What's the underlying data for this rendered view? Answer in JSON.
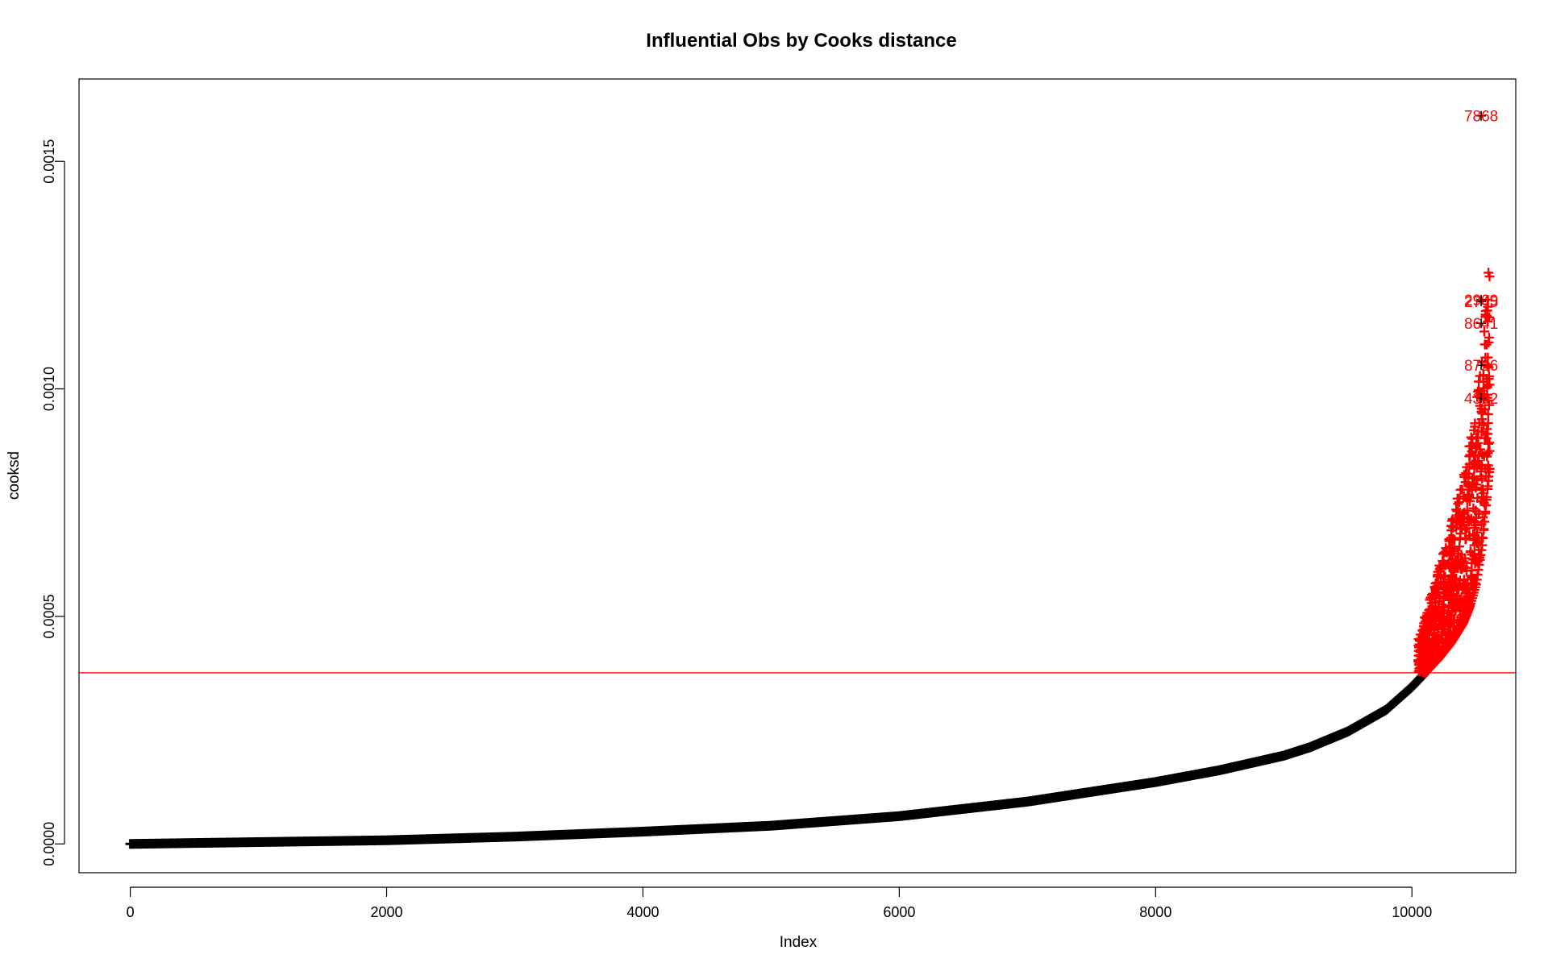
{
  "chart_data": {
    "type": "scatter",
    "title": "Influential Obs by Cooks distance",
    "xlabel": "Index",
    "ylabel": "cooksd",
    "xlim": [
      -400,
      10810
    ],
    "ylim": [
      -6.33e-05,
      0.001681
    ],
    "x_ticks": [
      0,
      2000,
      4000,
      6000,
      8000,
      10000
    ],
    "x_tick_labels": [
      "0",
      "2000",
      "4000",
      "6000",
      "8000",
      "10000"
    ],
    "y_ticks": [
      0,
      0.0005,
      0.001,
      0.0015
    ],
    "y_tick_labels": [
      "0.0000",
      "0.0005",
      "0.0010",
      "0.0015"
    ],
    "grid": false,
    "legend": "none",
    "n_obs": 10600,
    "curve_x": [
      0,
      1000,
      2000,
      3000,
      4000,
      5000,
      6000,
      7000,
      8000,
      8500,
      9000,
      9200,
      9500,
      9800,
      10000,
      10100,
      10200,
      10300,
      10400,
      10450,
      10500,
      10550,
      10600
    ],
    "curve_y": [
      0.0,
      4e-06,
      8e-06,
      1.6e-05,
      2.7e-05,
      4e-05,
      6.1e-05,
      9.3e-05,
      0.000136,
      0.000162,
      0.000194,
      0.000212,
      0.000247,
      0.000295,
      0.000345,
      0.000375,
      0.000405,
      0.00044,
      0.000485,
      0.00052,
      0.00057,
      0.00066,
      0.00081
    ],
    "threshold": {
      "value": 0.000376,
      "color": "#ff0000"
    },
    "point_color": "#000000",
    "influential_color": "#ff0000",
    "labeled_points": [
      {
        "label": "7868",
        "x": 10540,
        "y": 0.0016
      },
      {
        "label": "2909",
        "x": 10540,
        "y": 0.001196
      },
      {
        "label": "2745",
        "x": 10540,
        "y": 0.001192
      },
      {
        "label": "8641",
        "x": 10540,
        "y": 0.001144
      },
      {
        "label": "8726",
        "x": 10540,
        "y": 0.001052
      },
      {
        "label": "4362",
        "x": 10540,
        "y": 0.00098
      }
    ]
  }
}
